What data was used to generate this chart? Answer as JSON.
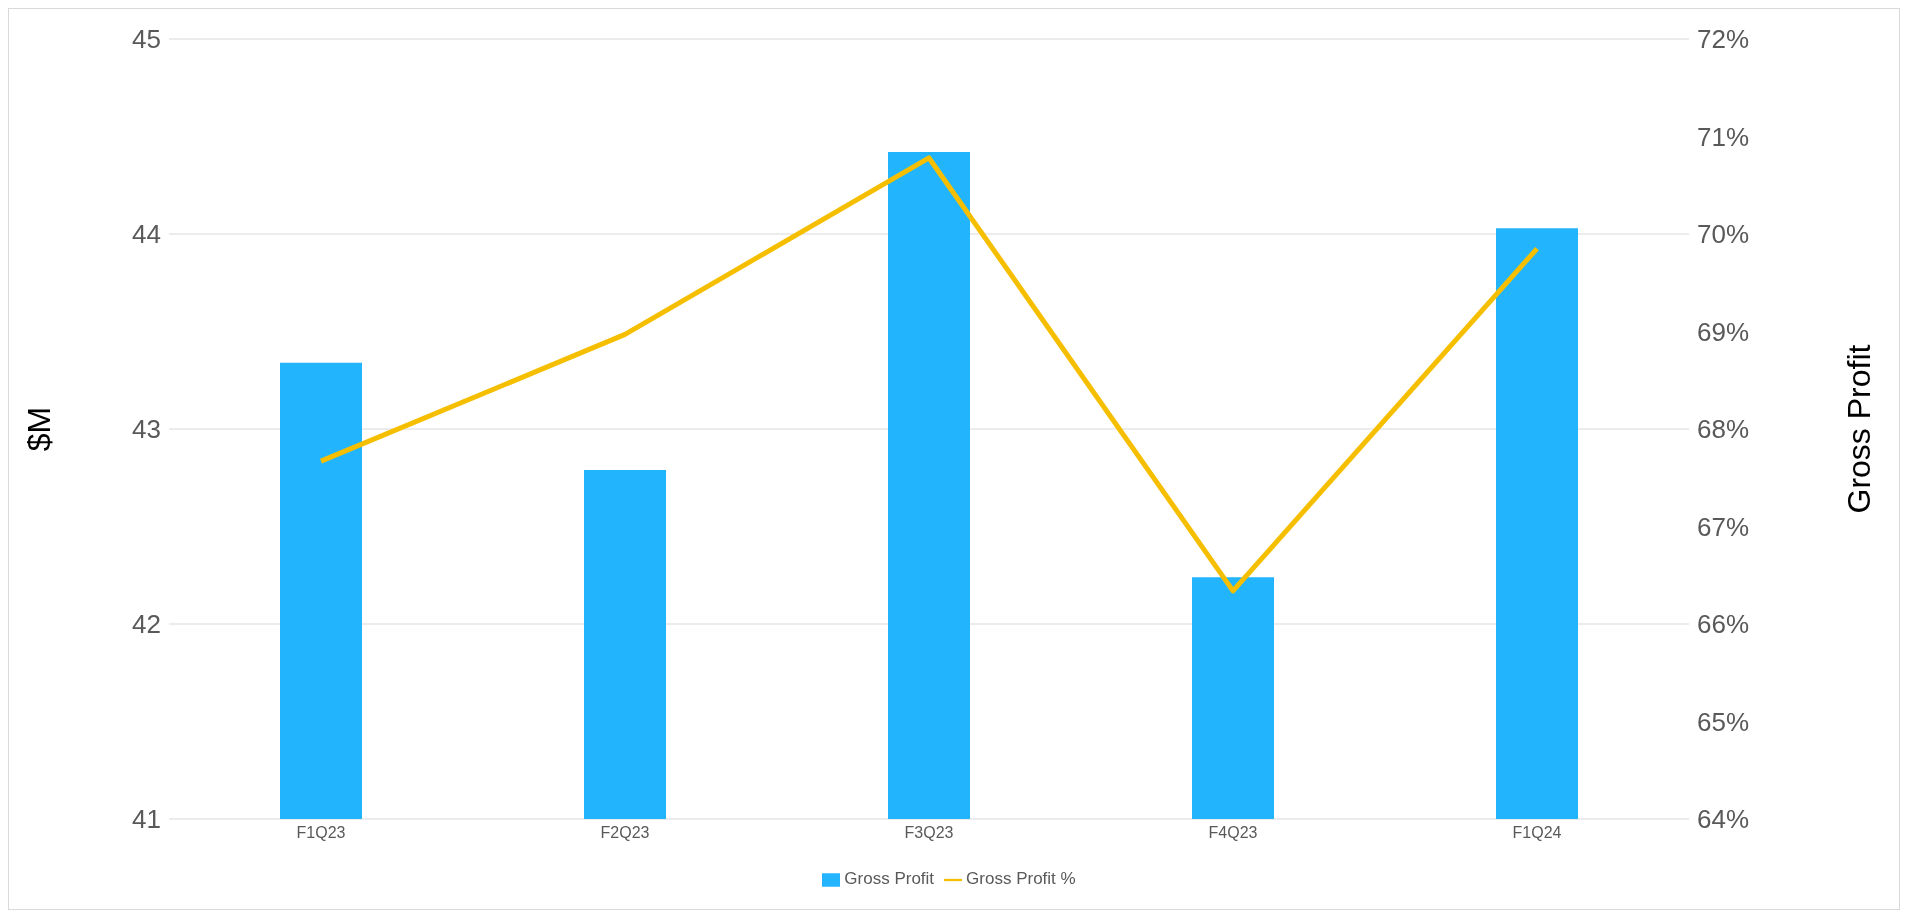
{
  "chart_data": {
    "type": "bar",
    "categories": [
      "F1Q23",
      "F2Q23",
      "F3Q23",
      "F4Q23",
      "F1Q24"
    ],
    "series": [
      {
        "name": "Gross Profit",
        "color": "#22b5fd",
        "values": [
          43.34,
          42.79,
          44.42,
          42.24,
          44.03
        ]
      },
      {
        "name": "Gross Profit %",
        "type": "line",
        "axis": "y2",
        "color": "#f5bf00",
        "values": [
          67.67,
          68.97,
          70.78,
          66.34,
          69.85
        ]
      }
    ],
    "ylabel": "$M",
    "y2label": "Gross Profit",
    "ylim": [
      41,
      45
    ],
    "yticks": [
      41,
      42,
      43,
      44,
      45
    ],
    "y2lim": [
      64,
      72
    ],
    "y2ticks": [
      {
        "value": 64,
        "label": "64%"
      },
      {
        "value": 65,
        "label": "65%"
      },
      {
        "value": 66,
        "label": "66%"
      },
      {
        "value": 67,
        "label": "67%"
      },
      {
        "value": 68,
        "label": "68%"
      },
      {
        "value": 69,
        "label": "69%"
      },
      {
        "value": 70,
        "label": "70%"
      },
      {
        "value": 71,
        "label": "71%"
      },
      {
        "value": 72,
        "label": "72%"
      }
    ],
    "grid": "y",
    "legend": "bottom",
    "marker": "none",
    "line_style": "solid"
  }
}
